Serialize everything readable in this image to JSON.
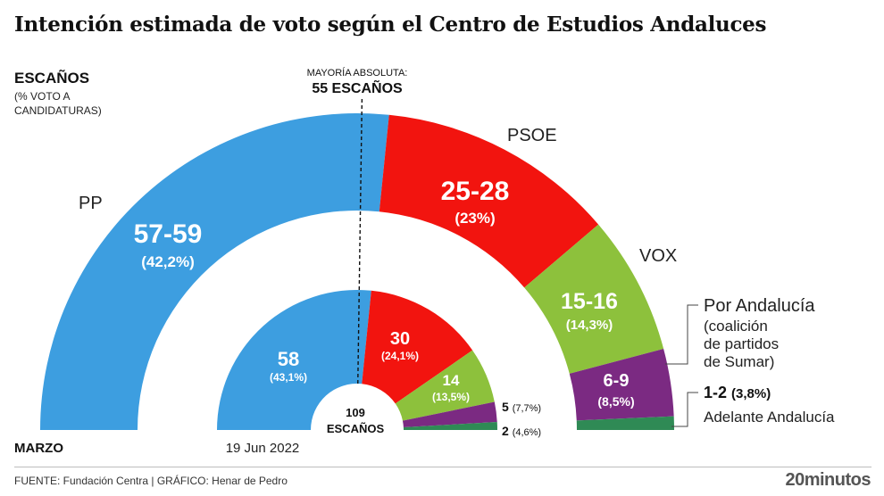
{
  "title": "Intención estimada de voto según el Centro de Estudios Andaluces",
  "legend": {
    "title": "ESCAÑOS",
    "subtitle": "(% VOTO A CANDIDATURAS)"
  },
  "majority": {
    "label": "MAYORÍA ABSOLUTA:",
    "value": "55 ESCAÑOS",
    "seats": 55
  },
  "center_label": {
    "number": "109",
    "text": "ESCAÑOS"
  },
  "footer": {
    "source": "FUENTE: Fundación Centra  |  GRÁFICO: Henar de Pedro",
    "brand": "20minutos"
  },
  "colors": {
    "PP": "#3d9ee0",
    "PSOE": "#f2140f",
    "VOX": "#8dc13c",
    "Por Andalucía": "#7b2a82",
    "Adelante Andalucía": "#2f8a55"
  },
  "chart_data": {
    "type": "parliament_semicircle",
    "total_seats": 109,
    "rings": [
      {
        "name": "MARZO",
        "parties": [
          {
            "party": "PP",
            "label": "PP",
            "seats": "57-59",
            "seats_mid": 58,
            "pct": "(42,2%)"
          },
          {
            "party": "PSOE",
            "label": "PSOE",
            "seats": "25-28",
            "seats_mid": 26.5,
            "pct": "(23%)"
          },
          {
            "party": "VOX",
            "label": "VOX",
            "seats": "15-16",
            "seats_mid": 15.5,
            "pct": "(14,3%)"
          },
          {
            "party": "Por Andalucía",
            "label": "Por Andalucía (coalición de partidos de Sumar)",
            "seats": "6-9",
            "seats_mid": 7.5,
            "pct": "(8,5%)"
          },
          {
            "party": "Adelante Andalucía",
            "label": "Adelante Andalucía",
            "seats": "1-2",
            "seats_mid": 1.5,
            "pct": "(3,8%)"
          }
        ]
      },
      {
        "name": "19 Jun 2022",
        "parties": [
          {
            "party": "PP",
            "seats": "58",
            "seats_mid": 58,
            "pct": "(43,1%)"
          },
          {
            "party": "PSOE",
            "seats": "30",
            "seats_mid": 30,
            "pct": "(24,1%)"
          },
          {
            "party": "VOX",
            "seats": "14",
            "seats_mid": 14,
            "pct": "(13,5%)"
          },
          {
            "party": "Por Andalucía",
            "seats": "5",
            "seats_mid": 5,
            "pct": "(7,7%)"
          },
          {
            "party": "Adelante Andalucía",
            "seats": "2",
            "seats_mid": 2,
            "pct": "(4,6%)"
          }
        ]
      }
    ]
  }
}
